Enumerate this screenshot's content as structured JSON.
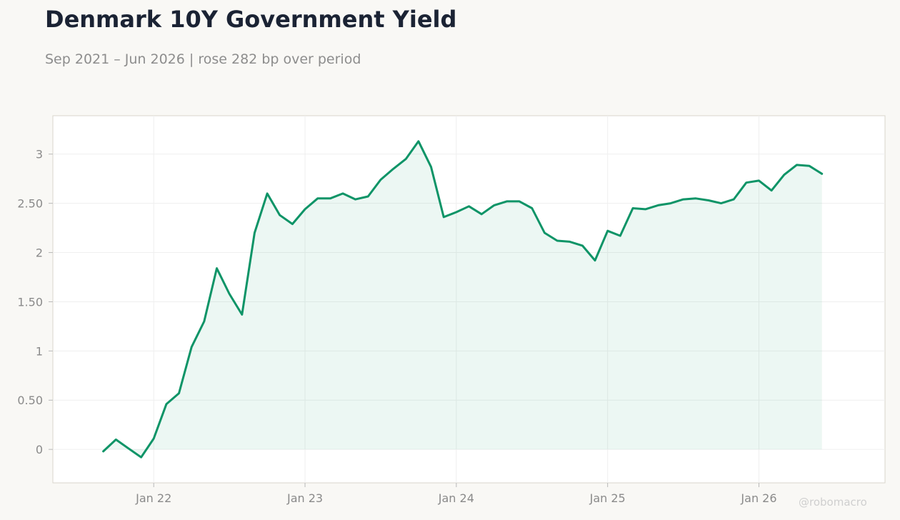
{
  "title": "Denmark 10Y Government Yield",
  "subtitle": "Sep 2021 – Jun 2026 | rose 282 bp over period",
  "watermark": "@robomacro",
  "colors": {
    "line": "#0e9467",
    "fill": "#0e9467",
    "background": "#f9f8f5",
    "plot_background": "#ffffff",
    "grid": "#efefef",
    "axis_text": "#8a8a8a",
    "title": "#1b2334"
  },
  "chart_data": {
    "type": "area",
    "title": "Denmark 10Y Government Yield",
    "subtitle": "Sep 2021 – Jun 2026 | rose 282 bp over period",
    "xlabel": "",
    "ylabel": "",
    "x_ticks": [
      {
        "date": "2022-01",
        "label": "Jan 22"
      },
      {
        "date": "2023-01",
        "label": "Jan 23"
      },
      {
        "date": "2024-01",
        "label": "Jan 24"
      },
      {
        "date": "2025-01",
        "label": "Jan 25"
      },
      {
        "date": "2026-01",
        "label": "Jan 26"
      }
    ],
    "y_ticks": [
      {
        "value": 0,
        "label": "0"
      },
      {
        "value": 0.5,
        "label": "0.50"
      },
      {
        "value": 1,
        "label": "1"
      },
      {
        "value": 1.5,
        "label": "1.50"
      },
      {
        "value": 2,
        "label": "2"
      },
      {
        "value": 2.5,
        "label": "2.50"
      },
      {
        "value": 3,
        "label": "3"
      }
    ],
    "xlim": [
      "2021-05",
      "2026-11"
    ],
    "ylim": [
      -0.34,
      3.39
    ],
    "grid": true,
    "legend": "none",
    "series": [
      {
        "x": [
          "2021-09",
          "2021-10",
          "2021-11",
          "2021-12",
          "2022-01",
          "2022-02",
          "2022-03",
          "2022-04",
          "2022-05",
          "2022-06",
          "2022-07",
          "2022-08",
          "2022-09",
          "2022-10",
          "2022-11",
          "2022-12",
          "2023-01",
          "2023-02",
          "2023-03",
          "2023-04",
          "2023-05",
          "2023-06",
          "2023-07",
          "2023-08",
          "2023-09",
          "2023-10",
          "2023-11",
          "2023-12",
          "2024-01",
          "2024-02",
          "2024-03",
          "2024-04",
          "2024-05",
          "2024-06",
          "2024-07",
          "2024-08",
          "2024-09",
          "2024-10",
          "2024-11",
          "2024-12",
          "2025-01",
          "2025-02",
          "2025-03",
          "2025-04",
          "2025-05",
          "2025-06",
          "2025-07",
          "2025-08",
          "2025-09",
          "2025-10",
          "2025-11",
          "2025-12",
          "2026-01",
          "2026-02",
          "2026-03",
          "2026-04",
          "2026-05",
          "2026-06"
        ],
        "y": [
          -0.02,
          0.1,
          0.01,
          -0.08,
          0.11,
          0.46,
          0.57,
          1.04,
          1.3,
          1.84,
          1.58,
          1.37,
          2.2,
          2.6,
          2.38,
          2.29,
          2.44,
          2.55,
          2.55,
          2.6,
          2.54,
          2.57,
          2.74,
          2.85,
          2.95,
          3.13,
          2.87,
          2.36,
          2.41,
          2.47,
          2.39,
          2.48,
          2.52,
          2.52,
          2.45,
          2.2,
          2.12,
          2.11,
          2.07,
          1.92,
          2.22,
          2.17,
          2.45,
          2.44,
          2.48,
          2.5,
          2.54,
          2.55,
          2.53,
          2.5,
          2.54,
          2.71,
          2.73,
          2.63,
          2.79,
          2.89,
          2.88,
          2.8
        ]
      }
    ]
  }
}
